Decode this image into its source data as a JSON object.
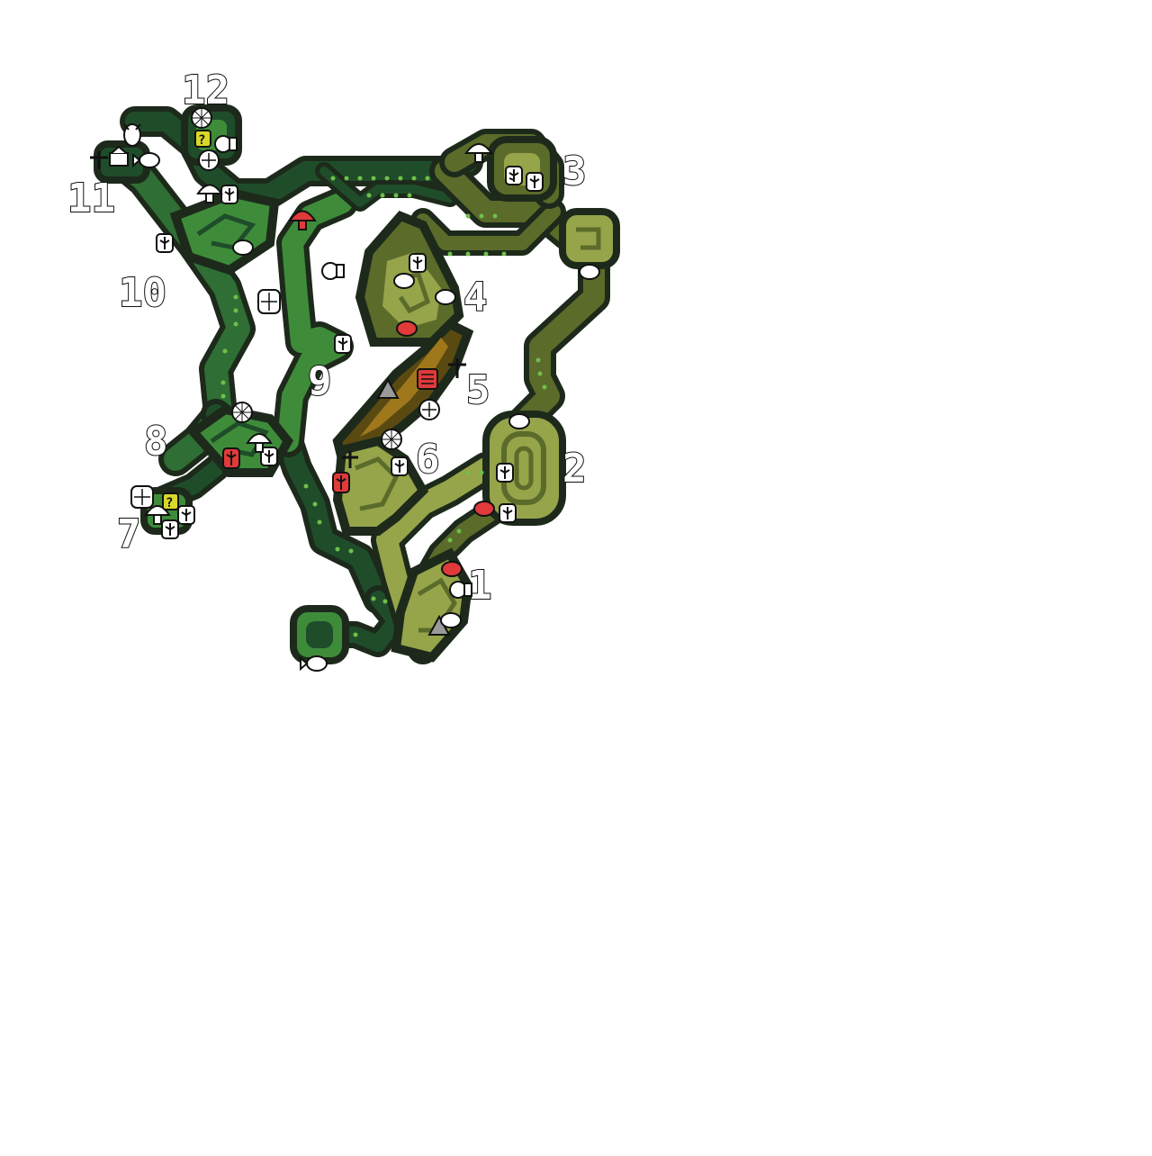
{
  "map": {
    "colors": {
      "background": "#ffffff",
      "outline": "#1d2a1b",
      "forest_dark": "#1f4d2a",
      "forest_light": "#3e8c3a",
      "plains_dark": "#5b6b2a",
      "plains_light": "#96a44a",
      "lava_dark": "#5a4a12",
      "lava_light": "#a0781c",
      "dot": "#6fbf4a",
      "marker_white": "#ffffff",
      "marker_red": "#e03a3a",
      "marker_yellow": "#d8d82a",
      "marker_gray": "#9a9a9a"
    },
    "areas": [
      {
        "number": "1",
        "name": "area-1"
      },
      {
        "number": "2",
        "name": "area-2"
      },
      {
        "number": "3",
        "name": "area-3"
      },
      {
        "number": "4",
        "name": "area-4"
      },
      {
        "number": "5",
        "name": "area-5"
      },
      {
        "number": "6",
        "name": "area-6"
      },
      {
        "number": "7",
        "name": "area-7"
      },
      {
        "number": "8",
        "name": "area-8"
      },
      {
        "number": "9",
        "name": "area-9"
      },
      {
        "number": "10",
        "name": "area-10"
      },
      {
        "number": "11",
        "name": "area-11"
      },
      {
        "number": "12",
        "name": "area-12"
      }
    ],
    "marker_types": [
      "herb-icon",
      "mushroom-icon",
      "mining-icon",
      "bone-icon",
      "spiderweb-icon",
      "insect-icon",
      "fish-icon",
      "honey-icon",
      "egg-icon",
      "mystery-icon",
      "camp-icon",
      "fossil-icon"
    ]
  }
}
